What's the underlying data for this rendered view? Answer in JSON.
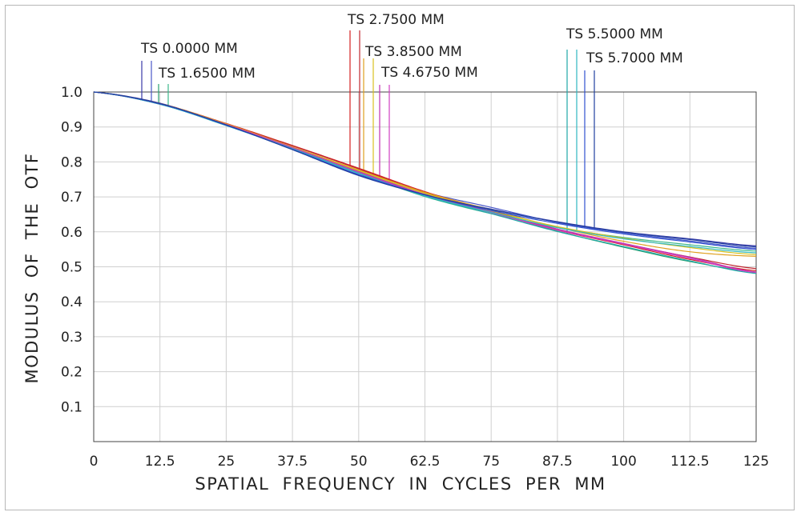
{
  "chart_data": {
    "type": "line",
    "title": "",
    "xlabel": "SPATIAL  FREQUENCY  IN  CYCLES  PER  MM",
    "ylabel": "MODULUS  OF  THE  OTF",
    "xlim": [
      0,
      125
    ],
    "ylim": [
      0,
      1.0
    ],
    "x_ticks": [
      "0",
      "12.5",
      "25",
      "37.5",
      "50",
      "62.5",
      "75",
      "87.5",
      "100",
      "112.5",
      "125"
    ],
    "y_ticks": [
      "0.1",
      "0.2",
      "0.3",
      "0.4",
      "0.5",
      "0.6",
      "0.7",
      "0.8",
      "0.9",
      "1.0"
    ],
    "grid": true,
    "x": [
      0,
      12.5,
      25,
      37.5,
      50,
      62.5,
      75,
      87.5,
      100,
      112.5,
      125
    ],
    "field_labels": [
      {
        "text": "TS 0.0000 MM",
        "colors": [
          "#3a3aa8",
          "#4a58c8"
        ]
      },
      {
        "text": "TS 1.6500 MM",
        "colors": [
          "#2aa070",
          "#3cb88a"
        ]
      },
      {
        "text": "TS 2.7500 MM",
        "colors": [
          "#d42020",
          "#c02830"
        ]
      },
      {
        "text": "TS 3.8500 MM",
        "colors": [
          "#e0a020",
          "#d8c020"
        ]
      },
      {
        "text": "TS 4.6750 MM",
        "colors": [
          "#c030b0",
          "#d040c0"
        ]
      },
      {
        "text": "TS 5.5000 MM",
        "colors": [
          "#20a8a8",
          "#30b8c0"
        ]
      },
      {
        "text": "TS 5.7000 MM",
        "colors": [
          "#3050d0",
          "#2040a0"
        ]
      }
    ],
    "series": [
      {
        "color": "#3a3aa8",
        "values": [
          1.0,
          0.968,
          0.906,
          0.836,
          0.762,
          0.707,
          0.665,
          0.629,
          0.6,
          0.58,
          0.56
        ]
      },
      {
        "color": "#4a58c8",
        "values": [
          1.0,
          0.966,
          0.905,
          0.838,
          0.769,
          0.713,
          0.67,
          0.627,
          0.597,
          0.574,
          0.553
        ]
      },
      {
        "color": "#2aa070",
        "values": [
          1.0,
          0.966,
          0.906,
          0.84,
          0.773,
          0.705,
          0.656,
          0.602,
          0.556,
          0.515,
          0.485
        ]
      },
      {
        "color": "#3cb88a",
        "values": [
          1.0,
          0.965,
          0.905,
          0.838,
          0.768,
          0.701,
          0.652,
          0.612,
          0.584,
          0.563,
          0.545
        ]
      },
      {
        "color": "#d42020",
        "values": [
          1.0,
          0.967,
          0.91,
          0.847,
          0.782,
          0.715,
          0.66,
          0.605,
          0.563,
          0.521,
          0.489
        ]
      },
      {
        "color": "#c02830",
        "values": [
          1.0,
          0.966,
          0.908,
          0.846,
          0.78,
          0.712,
          0.656,
          0.607,
          0.566,
          0.528,
          0.495
        ]
      },
      {
        "color": "#e0a020",
        "values": [
          1.0,
          0.967,
          0.909,
          0.843,
          0.777,
          0.713,
          0.663,
          0.613,
          0.573,
          0.543,
          0.53
        ]
      },
      {
        "color": "#d8c020",
        "values": [
          1.0,
          0.966,
          0.907,
          0.842,
          0.775,
          0.71,
          0.66,
          0.615,
          0.582,
          0.555,
          0.535
        ]
      },
      {
        "color": "#c030b0",
        "values": [
          1.0,
          0.966,
          0.907,
          0.841,
          0.772,
          0.707,
          0.657,
          0.608,
          0.567,
          0.527,
          0.485
        ]
      },
      {
        "color": "#d040c0",
        "values": [
          1.0,
          0.965,
          0.906,
          0.84,
          0.77,
          0.704,
          0.655,
          0.605,
          0.565,
          0.524,
          0.483
        ]
      },
      {
        "color": "#20a8a8",
        "values": [
          1.0,
          0.965,
          0.904,
          0.838,
          0.768,
          0.702,
          0.652,
          0.601,
          0.558,
          0.517,
          0.481
        ]
      },
      {
        "color": "#30b8c0",
        "values": [
          1.0,
          0.965,
          0.904,
          0.837,
          0.767,
          0.703,
          0.656,
          0.612,
          0.58,
          0.558,
          0.54
        ]
      },
      {
        "color": "#3050d0",
        "values": [
          1.0,
          0.966,
          0.905,
          0.836,
          0.764,
          0.706,
          0.661,
          0.624,
          0.594,
          0.571,
          0.55
        ]
      },
      {
        "color": "#2040a0",
        "values": [
          1.0,
          0.967,
          0.906,
          0.835,
          0.761,
          0.706,
          0.664,
          0.628,
          0.599,
          0.578,
          0.557
        ]
      }
    ]
  }
}
